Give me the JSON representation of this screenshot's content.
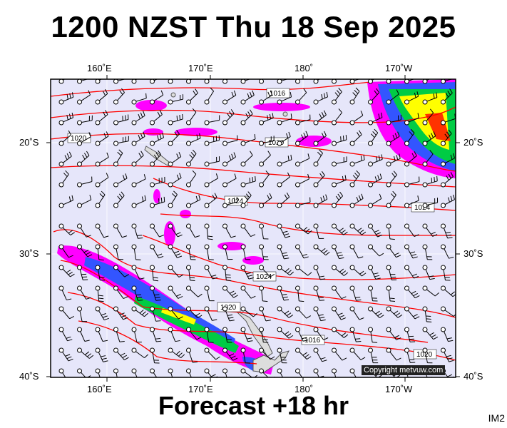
{
  "title": "1200 NZST Thu 18 Sep 2025",
  "footer": "Forecast +18 hr",
  "watermark": "IM2",
  "copyright": "Copyright metvuw.com",
  "axes": {
    "lon_labels": [
      "160˚E",
      "170˚E",
      "180˚",
      "170˚W"
    ],
    "lat_labels": [
      "20˚S",
      "30˚S",
      "40˚S"
    ]
  },
  "isobars": [
    "1016",
    "1020",
    "1020",
    "1024",
    "1024",
    "1024",
    "1024",
    "1020",
    "1016",
    "1020"
  ],
  "colors": {
    "ocean": "#e6e6fa",
    "isobar": "#ff0000",
    "rain_light": "#ff00ff",
    "rain_mid": "#3355ff",
    "rain_heavy": "#00cc44",
    "rain_max": "#ffff00"
  }
}
